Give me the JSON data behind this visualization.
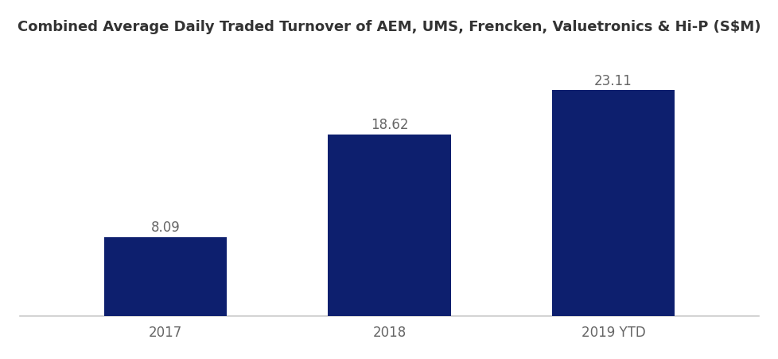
{
  "categories": [
    "2017",
    "2018",
    "2019 YTD"
  ],
  "values": [
    8.09,
    18.62,
    23.11
  ],
  "bar_color": "#0d1f6e",
  "title": "Combined Average Daily Traded Turnover of AEM, UMS, Frencken, Valuetronics & Hi-P (S$M)",
  "title_fontsize": 13,
  "label_fontsize": 12,
  "tick_fontsize": 12,
  "bar_width": 0.55,
  "ylim": [
    0,
    27
  ],
  "background_color": "#ffffff",
  "label_color": "#666666",
  "tick_color": "#666666",
  "spine_color": "#cccccc",
  "title_color": "#333333",
  "title_fontweight": "bold"
}
